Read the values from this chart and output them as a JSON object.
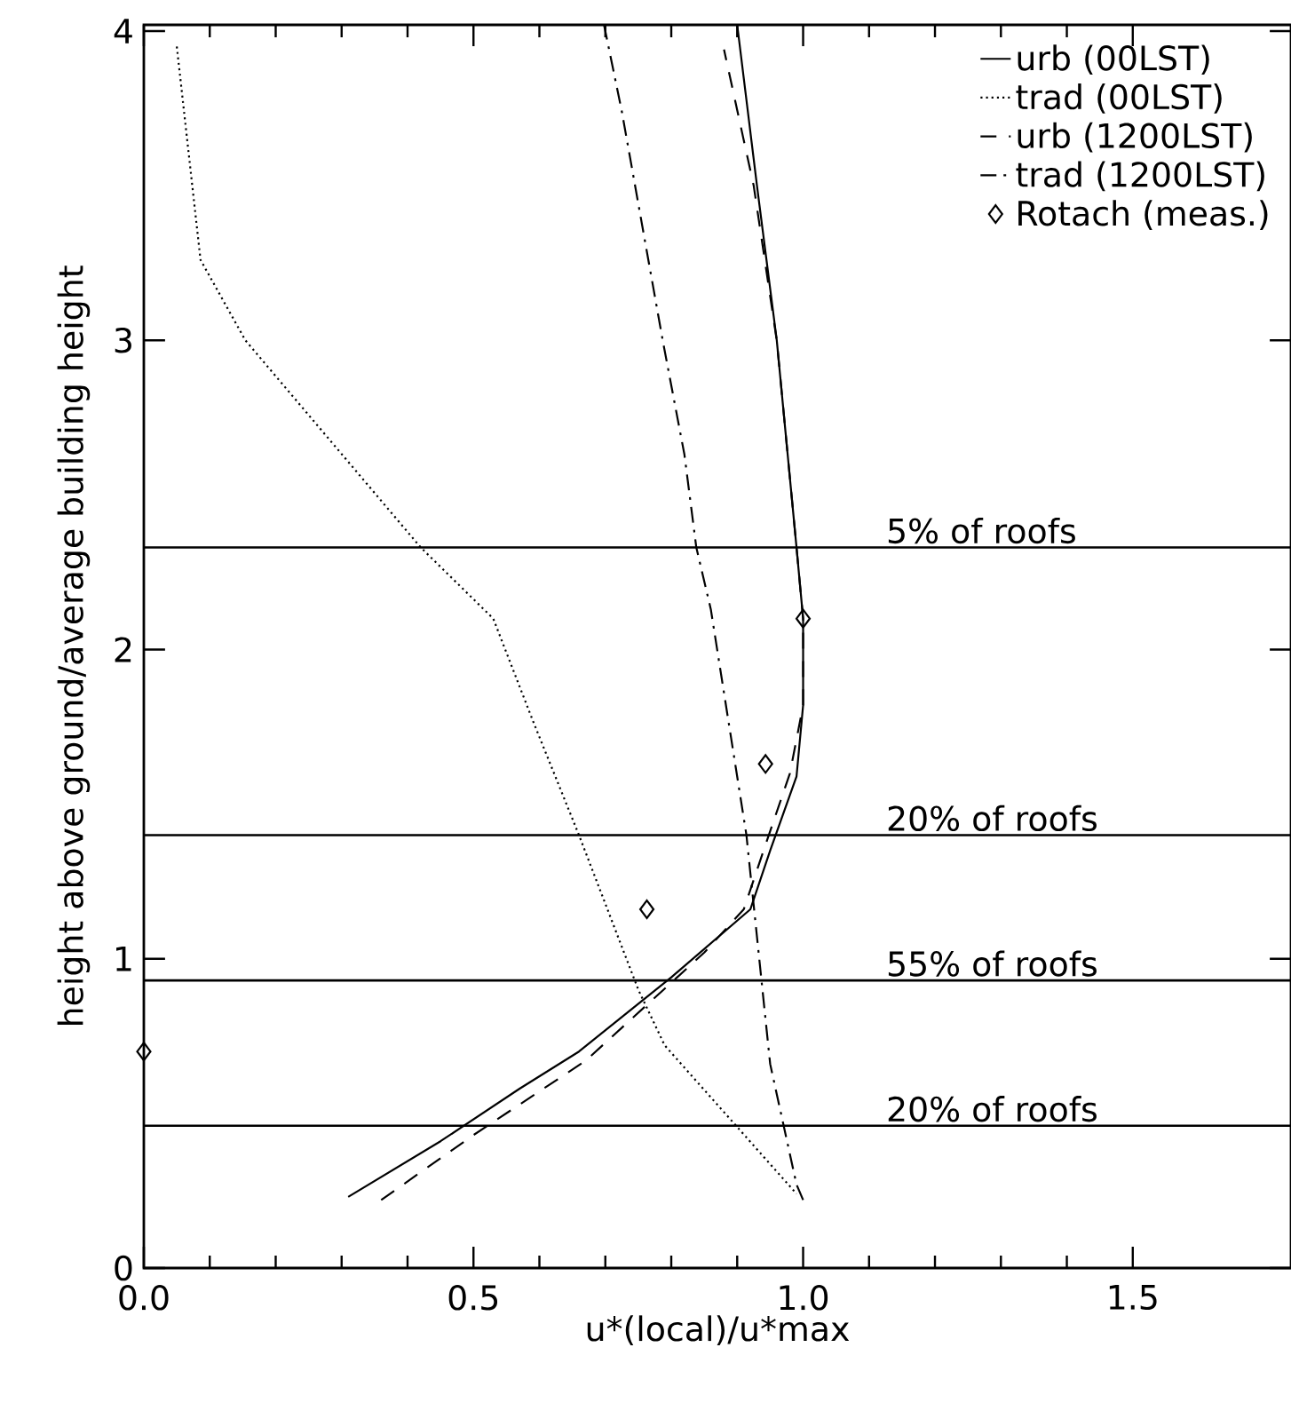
{
  "chart_data": {
    "type": "line",
    "xlabel": "u*(local)/u*max",
    "ylabel": "height above ground/average building height",
    "xlim": [
      0,
      1.74
    ],
    "ylim": [
      0,
      4.02
    ],
    "xticks": [
      {
        "value": 0,
        "label": "0.0"
      },
      {
        "value": 0.5,
        "label": "0.5"
      },
      {
        "value": 1,
        "label": "1.0"
      },
      {
        "value": 1.5,
        "label": "1.5"
      }
    ],
    "yticks": [
      0,
      1,
      2,
      3,
      4
    ],
    "grid": false,
    "legend": "top right",
    "series": [
      {
        "name": "urb (00LST)",
        "color": "#000000",
        "line_style": "solid",
        "x": [
          0.31,
          0.45,
          0.57,
          0.66,
          0.8,
          0.92,
          0.95,
          0.99,
          1.0,
          1.0,
          0.99,
          0.96,
          0.93,
          0.9
        ],
        "values": [
          0.23,
          0.41,
          0.58,
          0.7,
          0.94,
          1.16,
          1.35,
          1.59,
          1.82,
          2.1,
          2.33,
          3.0,
          3.5,
          4.02
        ]
      },
      {
        "name": "trad (00LST)",
        "color": "#000000",
        "line_style": "dotted",
        "x": [
          0.05,
          0.086,
          0.154,
          0.42,
          0.53,
          0.59,
          0.66,
          0.75,
          0.79,
          0.89,
          0.99
        ],
        "values": [
          3.95,
          3.26,
          3.0,
          2.33,
          2.1,
          1.77,
          1.4,
          0.9,
          0.72,
          0.48,
          0.24
        ]
      },
      {
        "name": "urb (1200LST)",
        "color": "#000000",
        "line_style": "dashed",
        "x": [
          0.36,
          0.5,
          0.67,
          0.85,
          0.91,
          0.94,
          0.98,
          1.0,
          1.0,
          0.99,
          0.96,
          0.925,
          0.88
        ],
        "values": [
          0.22,
          0.43,
          0.67,
          1.02,
          1.16,
          1.35,
          1.6,
          1.82,
          2.1,
          2.33,
          3.0,
          3.5,
          3.94
        ]
      },
      {
        "name": "trad (1200LST)",
        "color": "#000000",
        "line_style": "dashdot",
        "x": [
          1.0,
          0.99,
          0.95,
          0.914,
          0.86,
          0.838,
          0.82,
          0.787,
          0.725,
          0.698
        ],
        "values": [
          0.22,
          0.27,
          0.66,
          1.4,
          2.13,
          2.33,
          2.63,
          3.0,
          3.74,
          4.02
        ]
      },
      {
        "name": "Rotach (meas.)",
        "type": "scatter",
        "marker": "diamond",
        "color": "#000000",
        "x": [
          0.0,
          0.763,
          0.943,
          1.0
        ],
        "values": [
          0.7,
          1.16,
          1.63,
          2.1
        ]
      }
    ],
    "ref_lines": [
      {
        "axis": "y",
        "value": 2.33,
        "label": "5% of roofs"
      },
      {
        "axis": "y",
        "value": 1.4,
        "label": "20% of roofs"
      },
      {
        "axis": "y",
        "value": 0.93,
        "label": "55% of roofs"
      },
      {
        "axis": "y",
        "value": 0.46,
        "label": "20% of roofs"
      }
    ]
  }
}
